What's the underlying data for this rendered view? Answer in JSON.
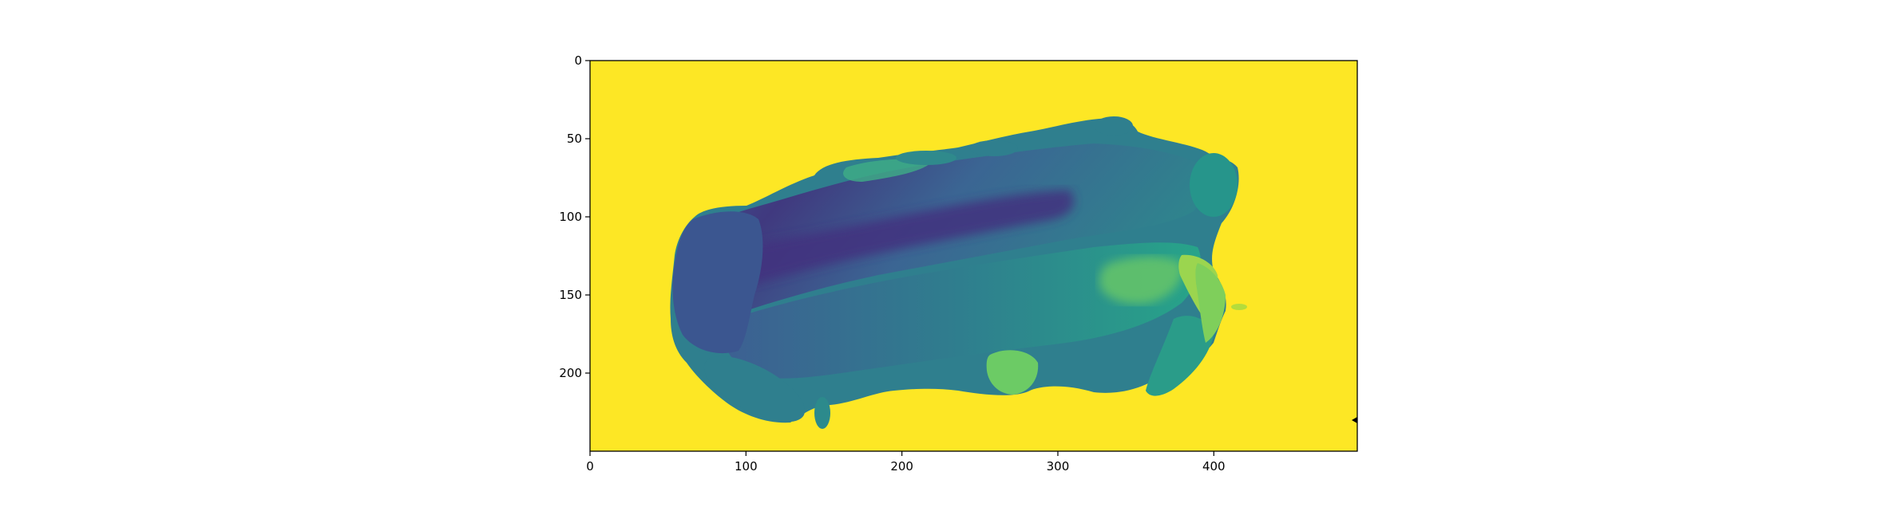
{
  "chart_data": {
    "type": "heatmap",
    "title": "",
    "xlabel": "",
    "ylabel": "",
    "colormap": "viridis",
    "background_color": "#fde725",
    "xlim": [
      0,
      492
    ],
    "ylim": [
      250,
      0
    ],
    "x_ticks": [
      0,
      100,
      200,
      300,
      400
    ],
    "y_ticks": [
      0,
      50,
      100,
      150,
      200
    ],
    "x_tick_labels": [
      "0",
      "100",
      "200",
      "300",
      "400"
    ],
    "y_tick_labels": [
      "0",
      "50",
      "100",
      "150",
      "200"
    ],
    "grid": false,
    "legend": "none",
    "colors": {
      "darkest": "#3f2f7c",
      "dark": "#3d5a93",
      "mid": "#2f7f8e",
      "teal": "#24a08a",
      "green": "#6bc866",
      "light_green": "#a3d64c",
      "background": "#fde725"
    }
  }
}
